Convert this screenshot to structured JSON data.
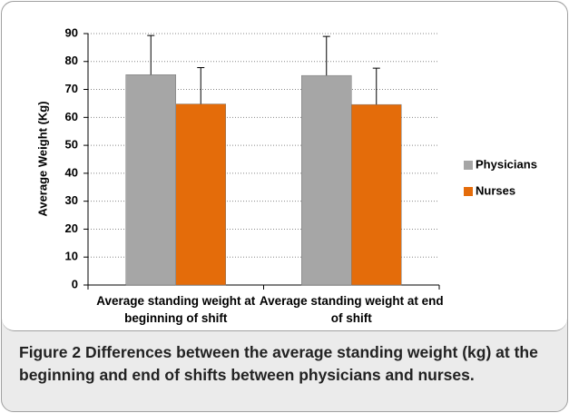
{
  "chart_data": {
    "type": "bar",
    "ylabel": "Average Weight (Kg)",
    "categories": [
      "Average standing weight at beginning of shift",
      "Average standing weight at end of shift"
    ],
    "series": [
      {
        "name": "Physicians",
        "color": "#a6a6a6",
        "values": [
          75.3,
          75.0
        ],
        "errors": [
          14,
          14
        ]
      },
      {
        "name": "Nurses",
        "color": "#e46c0a",
        "values": [
          64.8,
          64.6
        ],
        "errors": [
          13,
          13
        ]
      }
    ],
    "ylim": [
      0,
      90
    ],
    "yticks": [
      0,
      10,
      20,
      30,
      40,
      50,
      60,
      70,
      80,
      90
    ],
    "grid": true,
    "legend": "right"
  },
  "caption": {
    "label": "Figure 2",
    "text": "Differences between the average standing weight (kg) at the beginning and end of shifts between physicians and nurses."
  }
}
